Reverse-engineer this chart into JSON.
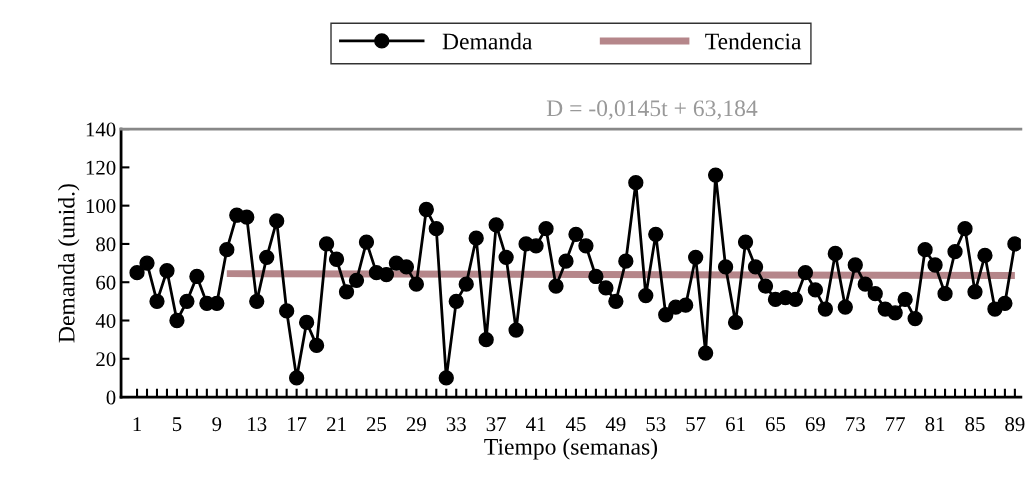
{
  "chart_data": {
    "type": "line",
    "xlabel": "Tiempo (semanas)",
    "ylabel": "Demanda (unid.)",
    "annotations": [
      "D = -0,0145t + 63,184"
    ],
    "x": [
      1,
      2,
      3,
      4,
      5,
      6,
      7,
      8,
      9,
      10,
      11,
      12,
      13,
      14,
      15,
      16,
      17,
      18,
      19,
      20,
      21,
      22,
      23,
      24,
      25,
      26,
      27,
      28,
      29,
      30,
      31,
      32,
      33,
      34,
      35,
      36,
      37,
      38,
      39,
      40,
      41,
      42,
      43,
      44,
      45,
      46,
      47,
      48,
      49,
      50,
      51,
      52,
      53,
      54,
      55,
      56,
      57,
      58,
      59,
      60,
      61,
      62,
      63,
      64,
      65,
      66,
      67,
      68,
      69,
      70,
      71,
      72,
      73,
      74,
      75,
      76,
      77,
      78,
      79,
      80,
      81,
      82,
      83,
      84,
      85,
      86,
      87,
      88,
      89
    ],
    "series": [
      {
        "name": "Demanda",
        "color": "#000000",
        "marker": "circle",
        "values": [
          65,
          70,
          50,
          66,
          40,
          50,
          63,
          49,
          49,
          77,
          95,
          94,
          50,
          73,
          92,
          45,
          10,
          39,
          27,
          80,
          72,
          55,
          61,
          81,
          65,
          64,
          70,
          68,
          59,
          98,
          88,
          10,
          50,
          59,
          83,
          30,
          90,
          73,
          35,
          80,
          79,
          88,
          58,
          71,
          85,
          79,
          63,
          57,
          50,
          71,
          112,
          53,
          85,
          43,
          47,
          48,
          73,
          23,
          116,
          68,
          39,
          81,
          68,
          58,
          51,
          52,
          51,
          65,
          56,
          46,
          75,
          47,
          69,
          59,
          54,
          46,
          44,
          51,
          41,
          77,
          69,
          54,
          76,
          88,
          55,
          74,
          46,
          49,
          80
        ]
      },
      {
        "name": "Tendencia",
        "color": "#b5868a",
        "marker": "none",
        "x": [
          10,
          89
        ],
        "values": [
          64.5,
          63.5
        ]
      }
    ],
    "xlim": [
      -0.6,
      89.6
    ],
    "xticks": [
      1,
      {
        "value": 2,
        "label": null
      },
      {
        "value": 3,
        "label": null
      },
      {
        "value": 4,
        "label": null
      },
      5,
      {
        "value": 6,
        "label": null
      },
      {
        "value": 7,
        "label": null
      },
      {
        "value": 8,
        "label": null
      },
      9,
      {
        "value": 10,
        "label": null
      },
      {
        "value": 11,
        "label": null
      },
      {
        "value": 12,
        "label": null
      },
      13,
      {
        "value": 14,
        "label": null
      },
      {
        "value": 15,
        "label": null
      },
      {
        "value": 16,
        "label": null
      },
      17,
      {
        "value": 18,
        "label": null
      },
      {
        "value": 19,
        "label": null
      },
      {
        "value": 20,
        "label": null
      },
      21,
      {
        "value": 22,
        "label": null
      },
      {
        "value": 23,
        "label": null
      },
      {
        "value": 24,
        "label": null
      },
      25,
      {
        "value": 26,
        "label": null
      },
      {
        "value": 27,
        "label": null
      },
      {
        "value": 28,
        "label": null
      },
      29,
      {
        "value": 30,
        "label": null
      },
      {
        "value": 31,
        "label": null
      },
      {
        "value": 32,
        "label": null
      },
      33,
      {
        "value": 34,
        "label": null
      },
      {
        "value": 35,
        "label": null
      },
      {
        "value": 36,
        "label": null
      },
      37,
      {
        "value": 38,
        "label": null
      },
      {
        "value": 39,
        "label": null
      },
      {
        "value": 40,
        "label": null
      },
      41,
      {
        "value": 42,
        "label": null
      },
      {
        "value": 43,
        "label": null
      },
      {
        "value": 44,
        "label": null
      },
      45,
      {
        "value": 46,
        "label": null
      },
      {
        "value": 47,
        "label": null
      },
      {
        "value": 48,
        "label": null
      },
      49,
      {
        "value": 50,
        "label": null
      },
      {
        "value": 51,
        "label": null
      },
      {
        "value": 52,
        "label": null
      },
      53,
      {
        "value": 54,
        "label": null
      },
      {
        "value": 55,
        "label": null
      },
      {
        "value": 56,
        "label": null
      },
      57,
      {
        "value": 58,
        "label": null
      },
      {
        "value": 59,
        "label": null
      },
      {
        "value": 60,
        "label": null
      },
      61,
      {
        "value": 62,
        "label": null
      },
      {
        "value": 63,
        "label": null
      },
      {
        "value": 64,
        "label": null
      },
      65,
      {
        "value": 66,
        "label": null
      },
      {
        "value": 67,
        "label": null
      },
      {
        "value": 68,
        "label": null
      },
      69,
      {
        "value": 70,
        "label": null
      },
      {
        "value": 71,
        "label": null
      },
      {
        "value": 72,
        "label": null
      },
      73,
      {
        "value": 74,
        "label": null
      },
      {
        "value": 75,
        "label": null
      },
      {
        "value": 76,
        "label": null
      },
      77,
      {
        "value": 78,
        "label": null
      },
      {
        "value": 79,
        "label": null
      },
      {
        "value": 80,
        "label": null
      },
      81,
      {
        "value": 82,
        "label": null
      },
      {
        "value": 83,
        "label": null
      },
      {
        "value": 84,
        "label": null
      },
      85,
      {
        "value": 86,
        "label": null
      },
      {
        "value": 87,
        "label": null
      },
      {
        "value": 88,
        "label": null
      },
      89
    ],
    "ylim": [
      0,
      140
    ],
    "yticks": [
      0,
      20,
      40,
      60,
      80,
      100,
      120,
      140
    ],
    "grid": false,
    "legend": "top",
    "line_style": "solid"
  }
}
